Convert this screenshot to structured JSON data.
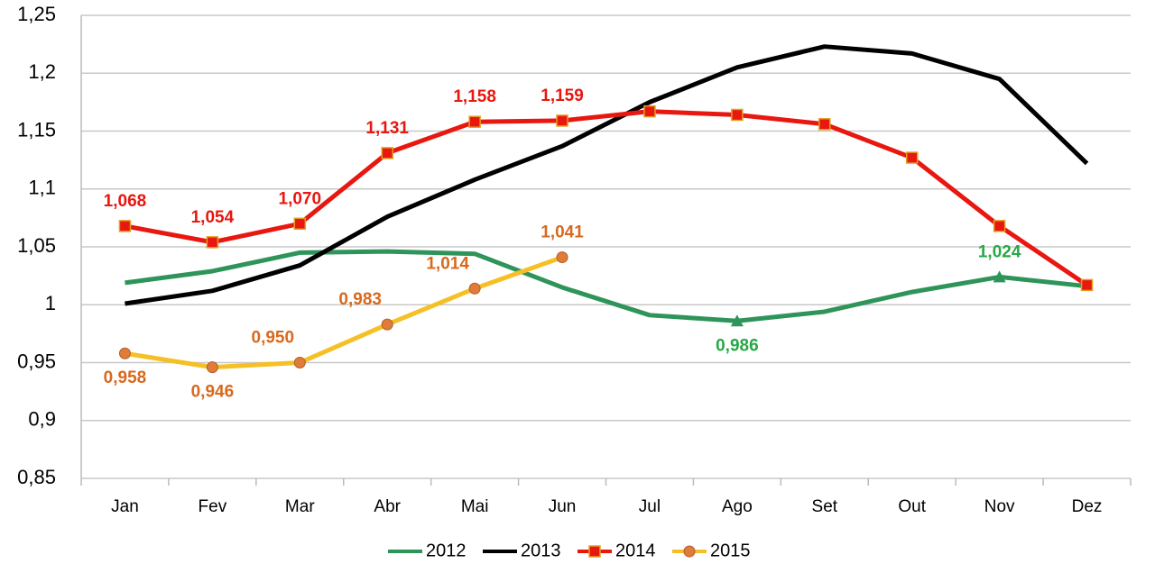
{
  "chart_data": {
    "type": "line",
    "categories": [
      "Jan",
      "Fev",
      "Mar",
      "Abr",
      "Mai",
      "Jun",
      "Jul",
      "Ago",
      "Set",
      "Out",
      "Nov",
      "Dez"
    ],
    "series": [
      {
        "name": "2012",
        "color": "#2e9459",
        "label_color": "#27a844",
        "marker": "triangle",
        "marker_at_labels_only": true,
        "values": [
          1.019,
          1.029,
          1.045,
          1.046,
          1.044,
          1.015,
          0.991,
          0.986,
          0.994,
          1.011,
          1.024,
          1.016
        ],
        "value_labels": [
          null,
          null,
          null,
          null,
          null,
          null,
          null,
          "0,986",
          null,
          null,
          "1,024",
          null
        ]
      },
      {
        "name": "2013",
        "color": "#000000",
        "values": [
          1.001,
          1.012,
          1.034,
          1.076,
          1.108,
          1.137,
          1.175,
          1.205,
          1.223,
          1.217,
          1.195,
          1.122
        ]
      },
      {
        "name": "2014",
        "color": "#e8170f",
        "label_color": "#e8170f",
        "marker": "square",
        "marker_color": "#e8170f",
        "marker_edge": "#e0a020",
        "values": [
          1.068,
          1.054,
          1.07,
          1.131,
          1.158,
          1.159,
          1.167,
          1.164,
          1.156,
          1.127,
          1.068,
          1.017
        ],
        "value_labels": [
          "1,068",
          "1,054",
          "1,070",
          "1,131",
          "1,158",
          "1,159",
          null,
          null,
          null,
          null,
          null,
          null
        ]
      },
      {
        "name": "2015",
        "color": "#f5c026",
        "label_color": "#d8691e",
        "marker": "circle",
        "marker_color": "#e07b39",
        "marker_edge": "#b0602a",
        "values": [
          0.958,
          0.946,
          0.95,
          0.983,
          1.014,
          1.041,
          null,
          null,
          null,
          null,
          null,
          null
        ],
        "value_labels": [
          "0,958",
          "0,946",
          "0,950",
          "0,983",
          "1,014",
          "1,041",
          null,
          null,
          null,
          null,
          null,
          null
        ]
      }
    ],
    "ylim": [
      0.85,
      1.25
    ],
    "yticks": [
      {
        "value": 0.85,
        "label": "0,85"
      },
      {
        "value": 0.9,
        "label": "0,9"
      },
      {
        "value": 0.95,
        "label": "0,95"
      },
      {
        "value": 1,
        "label": "1"
      },
      {
        "value": 1.05,
        "label": "1,05"
      },
      {
        "value": 1.1,
        "label": "1,1"
      },
      {
        "value": 1.15,
        "label": "1,15"
      },
      {
        "value": 1.2,
        "label": "1,2"
      },
      {
        "value": 1.25,
        "label": "1,25"
      }
    ],
    "grid": true,
    "legend": "bottom"
  }
}
